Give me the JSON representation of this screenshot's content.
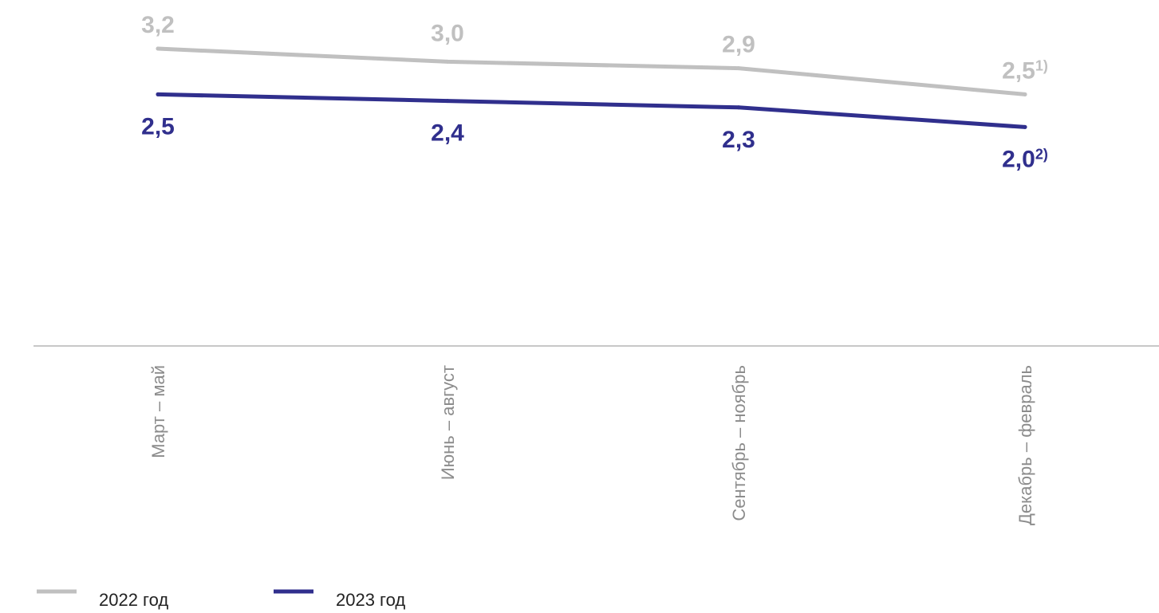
{
  "chart_data": {
    "type": "line",
    "title": "",
    "xlabel": "",
    "ylabel": "",
    "categories": [
      "Март – май",
      "Июнь – август",
      "Сентябрь – ноябрь",
      "Декабрь – февраль"
    ],
    "ylim": [
      0,
      3.4
    ],
    "grid": false,
    "legend_position": "bottom-left",
    "series": [
      {
        "name": "2022 год",
        "values": [
          3.2,
          3.0,
          2.9,
          2.5
        ],
        "labels": [
          "3,2",
          "3,0",
          "2,9",
          "2,5"
        ],
        "footnotes": [
          "",
          "",
          "",
          "1)"
        ],
        "color": "#c0c0c0"
      },
      {
        "name": "2023 год",
        "values": [
          2.5,
          2.4,
          2.3,
          2.0
        ],
        "labels": [
          "2,5",
          "2,4",
          "2,3",
          "2,0"
        ],
        "footnotes": [
          "",
          "",
          "",
          "2)"
        ],
        "color": "#302f8d"
      }
    ]
  },
  "colors": {
    "axis": "#c8c8c8",
    "tick_text": "#8c8c8c"
  }
}
